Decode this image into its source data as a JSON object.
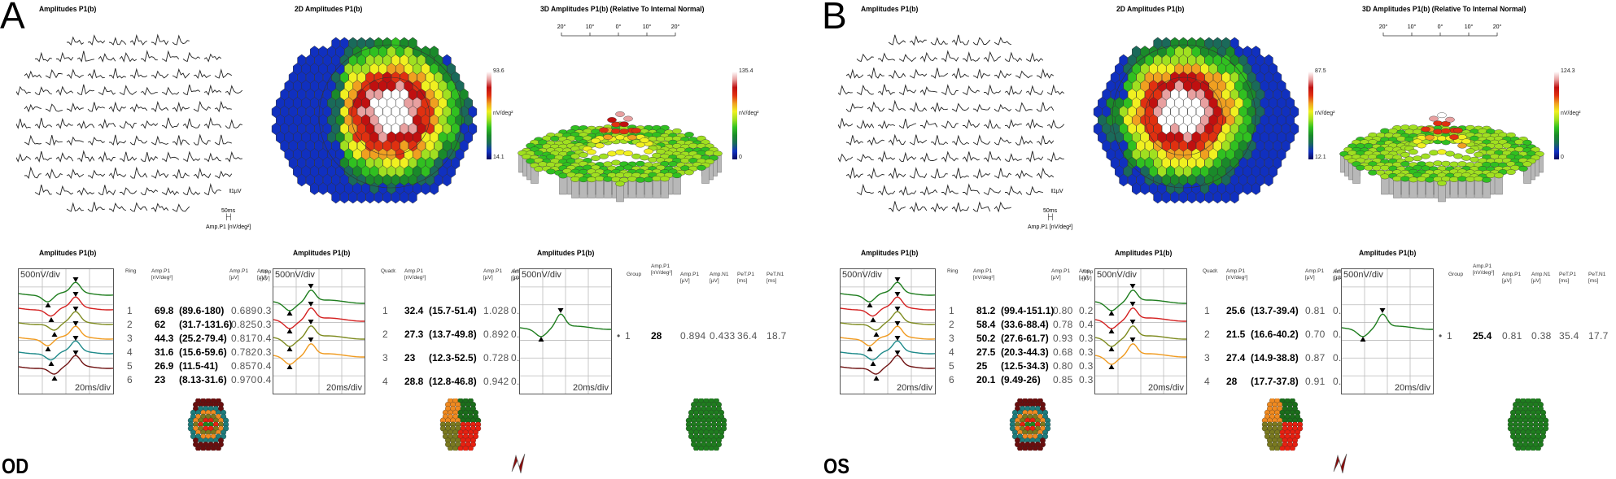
{
  "panels": [
    {
      "letter": "A",
      "eye": "OD",
      "trace_array": {
        "title": "Amplitudes P1(b)",
        "scale_voltage": "1µV",
        "scale_time": "50ms",
        "unit_label": "Amp.P1  [nV/deg²]",
        "row_counts": [
          6,
          9,
          10,
          11,
          10,
          11,
          10,
          11,
          10,
          9,
          6
        ]
      },
      "map2d": {
        "title": "2D Amplitudes P1(b)",
        "colorbar_max": "93.6",
        "colorbar_min": "14.1",
        "colorbar_unit": "nV/deg²",
        "ring_label": "20°"
      },
      "map3d": {
        "title": "3D Amplitudes P1(b) (Relative To Internal Normal)",
        "axis_ticks": [
          "20°",
          "10°",
          "0°",
          "10°",
          "20°"
        ],
        "colorbar_max": "135.4",
        "colorbar_min": "0",
        "colorbar_unit": "nV/deg²"
      },
      "rings": {
        "title": "Amplitudes P1(b)",
        "y_scale": "500nV/div",
        "x_scale": "20ms/div",
        "headers": {
          "id": "Ring",
          "amp_density": "Amp.P1\n[nV/deg²]",
          "amp_uv": "Amp.P1\n[µV]",
          "amp_uv2": "Amp\n[µV]"
        },
        "rows": [
          {
            "id": "1",
            "amp": "69.8",
            "range": "(89.6-180)",
            "amp_uv": "0.689",
            "amp2": "0.3"
          },
          {
            "id": "2",
            "amp": "62",
            "range": "(31.7-131.6)",
            "amp_uv": "0.825",
            "amp2": "0.3"
          },
          {
            "id": "3",
            "amp": "44.3",
            "range": "(25.2-79.4)",
            "amp_uv": "0.817",
            "amp2": "0.4"
          },
          {
            "id": "4",
            "amp": "31.6",
            "range": "(15.6-59.6)",
            "amp_uv": "0.782",
            "amp2": "0.3"
          },
          {
            "id": "5",
            "amp": "26.9",
            "range": "(11.5-41)",
            "amp_uv": "0.857",
            "amp2": "0.4"
          },
          {
            "id": "6",
            "amp": "23",
            "range": "(8.13-31.6)",
            "amp_uv": "0.970",
            "amp2": "0.4"
          }
        ]
      },
      "quadrants": {
        "title": "Amplitudes P1(b)",
        "y_scale": "500nV/div",
        "x_scale": "20ms/div",
        "left_axis_label": "Amp\n[µV]",
        "left_axis_values": [
          "0.3",
          "0.3",
          "0.4",
          "0.3",
          "0.4",
          "0.4"
        ],
        "headers": {
          "id": "Quadr.",
          "amp_density": "Amp.P1\n[nV/deg²]",
          "amp_uv": "Amp.P1\n[µV]",
          "amp_uv2": "Am\n[µV"
        },
        "rows": [
          {
            "id": "1",
            "amp": "32.4",
            "range": "(15.7-51.4)",
            "amp_uv": "1.028",
            "amp2": "0."
          },
          {
            "id": "2",
            "amp": "27.3",
            "range": "(13.7-49.8)",
            "amp_uv": "0.892",
            "amp2": "0."
          },
          {
            "id": "3",
            "amp": "23",
            "range": "(12.3-52.5)",
            "amp_uv": "0.728",
            "amp2": "0."
          },
          {
            "id": "4",
            "amp": "28.8",
            "range": "(12.8-46.8)",
            "amp_uv": "0.942",
            "amp2": "0."
          }
        ]
      },
      "group": {
        "title": "Amplitudes P1(b)",
        "y_scale": "500nV/div",
        "x_scale": "20ms/div",
        "left_axis_label": "Am\n[µV",
        "left_axis_values": [
          "0.",
          "0.",
          "0.",
          "0."
        ],
        "headers": {
          "id": "Group",
          "amp_density": "Amp.P1\n[nV/deg²]",
          "amp_uv": "Amp.P1\n[µV]",
          "amp_n1": "Amp.N1\n[µV]",
          "pet_p1": "PeT.P1\n[ms]",
          "pet_n1": "PeT.N1\n[ms]"
        },
        "row": {
          "bullet": "•",
          "id": "1",
          "amp": "28",
          "amp_uv": "0.894",
          "amp_n1": "0.433",
          "pet_p1": "36.4",
          "pet_n1": "18.7"
        }
      }
    },
    {
      "letter": "B",
      "eye": "OS",
      "trace_array": {
        "title": "Amplitudes P1(b)",
        "scale_voltage": "1µV",
        "scale_time": "50ms",
        "unit_label": "Amp.P1  [nV/deg²]",
        "row_counts": [
          6,
          9,
          10,
          11,
          10,
          11,
          10,
          11,
          10,
          9,
          6
        ]
      },
      "map2d": {
        "title": "2D Amplitudes P1(b)",
        "colorbar_max": "87.5",
        "colorbar_min": "12.1",
        "colorbar_unit": "nV/deg²",
        "ring_label": "20°"
      },
      "map3d": {
        "title": "3D Amplitudes P1(b) (Relative To Internal Normal)",
        "axis_ticks": [
          "20°",
          "10°",
          "0°",
          "10°",
          "20°"
        ],
        "colorbar_max": "124.3",
        "colorbar_min": "0",
        "colorbar_unit": "nV/deg²"
      },
      "rings": {
        "title": "Amplitudes P1(b)",
        "y_scale": "500nV/div",
        "x_scale": "20ms/div",
        "headers": {
          "id": "Ring",
          "amp_density": "Amp.P1\n[nV/deg²]",
          "amp_uv": "Amp.P1\n[µV]",
          "amp_uv2": "Amp\n[µV]"
        },
        "rows": [
          {
            "id": "1",
            "amp": "81.2",
            "range": "(99.4-151.1)",
            "amp_uv": "0.80",
            "amp2": "0.2"
          },
          {
            "id": "2",
            "amp": "58.4",
            "range": "(33.6-88.4)",
            "amp_uv": "0.78",
            "amp2": "0.4"
          },
          {
            "id": "3",
            "amp": "50.2",
            "range": "(27.6-61.7)",
            "amp_uv": "0.93",
            "amp2": "0.3"
          },
          {
            "id": "4",
            "amp": "27.5",
            "range": "(20.3-44.3)",
            "amp_uv": "0.68",
            "amp2": "0.3"
          },
          {
            "id": "5",
            "amp": "25",
            "range": "(12.5-34.3)",
            "amp_uv": "0.80",
            "amp2": "0.3"
          },
          {
            "id": "6",
            "amp": "20.1",
            "range": "(9.49-26)",
            "amp_uv": "0.85",
            "amp2": "0.3"
          }
        ]
      },
      "quadrants": {
        "title": "Amplitudes P1(b)",
        "y_scale": "500nV/div",
        "x_scale": "20ms/div",
        "left_axis_label": "Amp\n[µV]",
        "left_axis_values": [
          "0.2",
          "0.4",
          "0.3",
          "0.3",
          "0.3",
          "0.3"
        ],
        "headers": {
          "id": "Quadr.",
          "amp_density": "Amp.P1\n[nV/deg²]",
          "amp_uv": "Amp.P1\n[µV]",
          "amp_uv2": "Am\n[µV"
        },
        "rows": [
          {
            "id": "1",
            "amp": "25.6",
            "range": "(13.7-39.4)",
            "amp_uv": "0.81",
            "amp2": "0."
          },
          {
            "id": "2",
            "amp": "21.5",
            "range": "(16.6-40.2)",
            "amp_uv": "0.70",
            "amp2": "0."
          },
          {
            "id": "3",
            "amp": "27.4",
            "range": "(14.9-38.8)",
            "amp_uv": "0.87",
            "amp2": "0."
          },
          {
            "id": "4",
            "amp": "28",
            "range": "(17.7-37.8)",
            "amp_uv": "0.91",
            "amp2": "0."
          }
        ]
      },
      "group": {
        "title": "Amplitudes P1(b)",
        "y_scale": "500nV/div",
        "x_scale": "20ms/div",
        "left_axis_label": "Am\n[µV",
        "left_axis_values": [
          "0.",
          "0.",
          "0.",
          "0."
        ],
        "headers": {
          "id": "Group",
          "amp_density": "Amp.P1\n[nV/deg²]",
          "amp_uv": "Amp.P1\n[µV]",
          "amp_n1": "Amp.N1\n[µV]",
          "pet_p1": "PeT.P1\n[ms]",
          "pet_n1": "PeT.N1\n[ms]"
        },
        "row": {
          "bullet": "•",
          "id": "1",
          "amp": "25.4",
          "amp_uv": "0.81",
          "amp_n1": "0.38",
          "pet_p1": "35.4",
          "pet_n1": "17.7"
        }
      }
    }
  ],
  "colors": {
    "ring_traces": [
      "#1e7d1e",
      "#d42020",
      "#7d8a1e",
      "#f09a1e",
      "#1e8a8a",
      "#6e1010"
    ],
    "quadrant_traces": [
      "#1e7d1e",
      "#d42020",
      "#7d8a1e",
      "#f09a1e"
    ],
    "group_trace": "#1e7d1e",
    "quadrant_legend": [
      "#f08a20",
      "#1a6e1a",
      "#e82010",
      "#7a7a20"
    ],
    "ring_legend": [
      "#1e8a1e",
      "#e82010",
      "#7a7a20",
      "#f08a20",
      "#1e7d7d",
      "#6a0e0e"
    ],
    "colormap": [
      "#0a0a60",
      "#1030c0",
      "#1a6a5a",
      "#1a8a2a",
      "#30c020",
      "#a0e020",
      "#f0f020",
      "#f0a020",
      "#e03010",
      "#c01010",
      "#e8a0a0",
      "#ffffff"
    ]
  },
  "chart_data": [
    {
      "type": "table",
      "title": "Amplitudes P1(b) — Rings (OD)",
      "columns": [
        "Ring",
        "Amp.P1 [nV/deg²]",
        "Normal range",
        "Amp.P1 [µV]"
      ],
      "rows": [
        [
          "1",
          "69.8",
          "89.6-180",
          "0.689"
        ],
        [
          "2",
          "62",
          "31.7-131.6",
          "0.825"
        ],
        [
          "3",
          "44.3",
          "25.2-79.4",
          "0.817"
        ],
        [
          "4",
          "31.6",
          "15.6-59.6",
          "0.782"
        ],
        [
          "5",
          "26.9",
          "11.5-41",
          "0.857"
        ],
        [
          "6",
          "23",
          "8.13-31.6",
          "0.970"
        ]
      ]
    },
    {
      "type": "table",
      "title": "Amplitudes P1(b) — Quadrants (OD)",
      "columns": [
        "Quadr.",
        "Amp.P1 [nV/deg²]",
        "Normal range",
        "Amp.P1 [µV]"
      ],
      "rows": [
        [
          "1",
          "32.4",
          "15.7-51.4",
          "1.028"
        ],
        [
          "2",
          "27.3",
          "13.7-49.8",
          "0.892"
        ],
        [
          "3",
          "23",
          "12.3-52.5",
          "0.728"
        ],
        [
          "4",
          "28.8",
          "12.8-46.8",
          "0.942"
        ]
      ]
    },
    {
      "type": "table",
      "title": "Amplitudes P1(b) — Group (OD)",
      "columns": [
        "Group",
        "Amp.P1 [nV/deg²]",
        "Amp.P1 [µV]",
        "Amp.N1 [µV]",
        "PeT.P1 [ms]",
        "PeT.N1 [ms]"
      ],
      "rows": [
        [
          "1",
          "28",
          "0.894",
          "0.433",
          "36.4",
          "18.7"
        ]
      ]
    },
    {
      "type": "table",
      "title": "Amplitudes P1(b) — Rings (OS)",
      "columns": [
        "Ring",
        "Amp.P1 [nV/deg²]",
        "Normal range",
        "Amp.P1 [µV]"
      ],
      "rows": [
        [
          "1",
          "81.2",
          "99.4-151.1",
          "0.80"
        ],
        [
          "2",
          "58.4",
          "33.6-88.4",
          "0.78"
        ],
        [
          "3",
          "50.2",
          "27.6-61.7",
          "0.93"
        ],
        [
          "4",
          "27.5",
          "20.3-44.3",
          "0.68"
        ],
        [
          "5",
          "25",
          "12.5-34.3",
          "0.80"
        ],
        [
          "6",
          "20.1",
          "9.49-26",
          "0.85"
        ]
      ]
    },
    {
      "type": "table",
      "title": "Amplitudes P1(b) — Quadrants (OS)",
      "columns": [
        "Quadr.",
        "Amp.P1 [nV/deg²]",
        "Normal range",
        "Amp.P1 [µV]"
      ],
      "rows": [
        [
          "1",
          "25.6",
          "13.7-39.4",
          "0.81"
        ],
        [
          "2",
          "21.5",
          "16.6-40.2",
          "0.70"
        ],
        [
          "3",
          "27.4",
          "14.9-38.8",
          "0.87"
        ],
        [
          "4",
          "28",
          "17.7-37.8",
          "0.91"
        ]
      ]
    },
    {
      "type": "table",
      "title": "Amplitudes P1(b) — Group (OS)",
      "columns": [
        "Group",
        "Amp.P1 [nV/deg²]",
        "Amp.P1 [µV]",
        "Amp.N1 [µV]",
        "PeT.P1 [ms]",
        "PeT.N1 [ms]"
      ],
      "rows": [
        [
          "1",
          "25.4",
          "0.81",
          "0.38",
          "35.4",
          "17.7"
        ]
      ]
    },
    {
      "type": "heatmap",
      "title": "2D Amplitudes P1(b) (OD)",
      "colorbar_range": [
        14.1,
        93.6
      ],
      "unit": "nV/deg²"
    },
    {
      "type": "heatmap",
      "title": "2D Amplitudes P1(b) (OS)",
      "colorbar_range": [
        12.1,
        87.5
      ],
      "unit": "nV/deg²"
    },
    {
      "type": "heatmap",
      "title": "3D Amplitudes P1(b) (Relative To Internal Normal) (OD)",
      "colorbar_range": [
        0,
        135.4
      ],
      "unit": "nV/deg²"
    },
    {
      "type": "heatmap",
      "title": "3D Amplitudes P1(b) (Relative To Internal Normal) (OS)",
      "colorbar_range": [
        0,
        124.3
      ],
      "unit": "nV/deg²"
    }
  ]
}
